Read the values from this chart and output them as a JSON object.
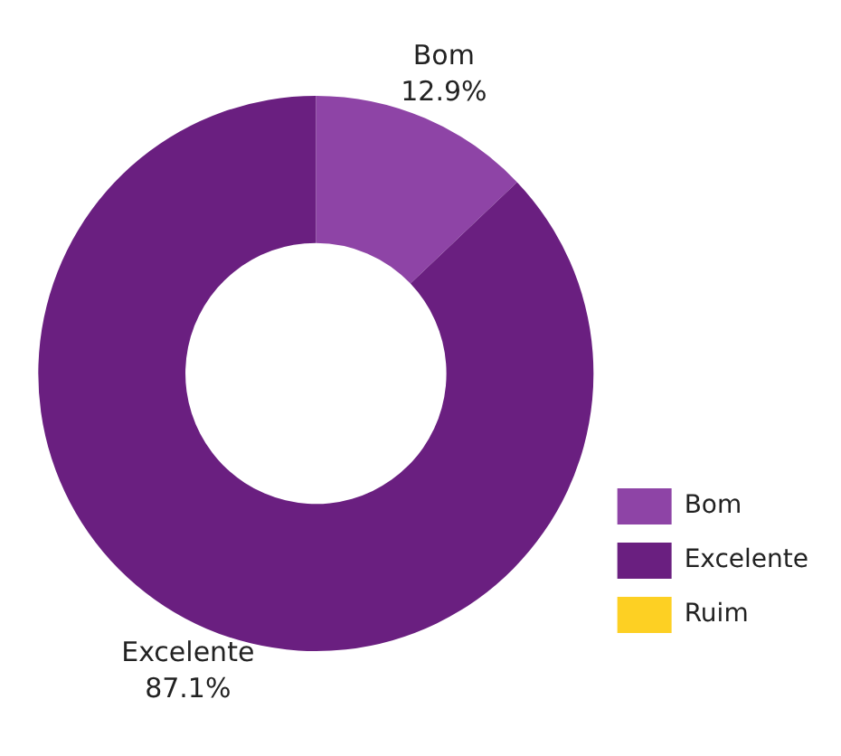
{
  "chart_data": {
    "type": "donut",
    "categories": [
      "Bom",
      "Excelente",
      "Ruim"
    ],
    "values": [
      12.9,
      87.1,
      0
    ],
    "colors": [
      "#8e44a6",
      "#6a1f80",
      "#fdd023"
    ],
    "value_labels": [
      "12.9%",
      "87.1%",
      null
    ],
    "legend": "bottom right"
  }
}
